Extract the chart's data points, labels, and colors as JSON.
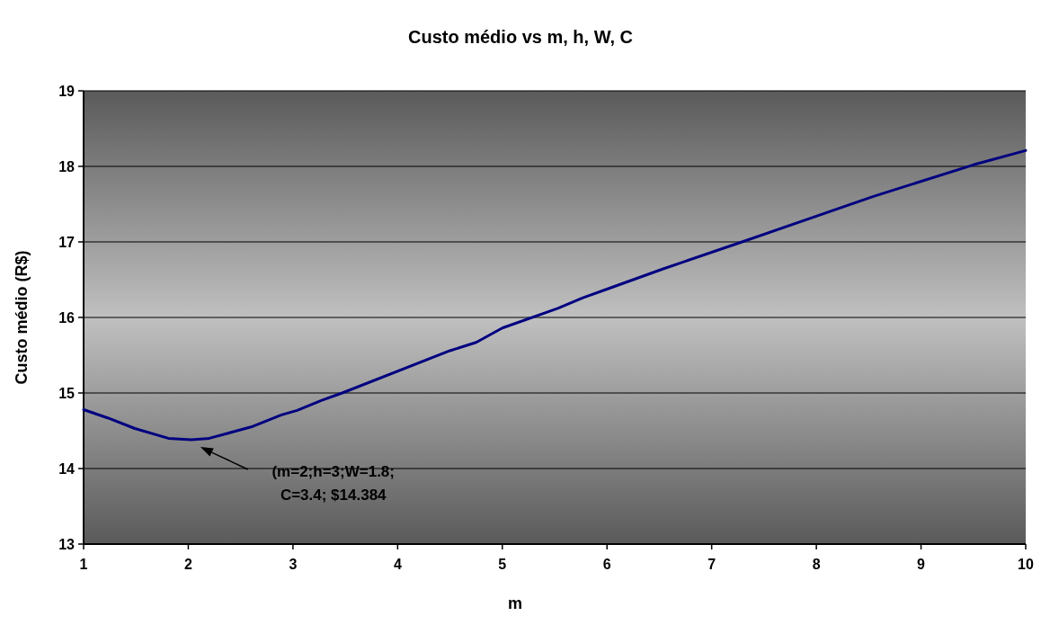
{
  "chart_data": {
    "type": "line",
    "title": "Custo médio vs m, h, W, C",
    "xlabel": "m",
    "ylabel": "Custo médio (R$)",
    "x": [
      1,
      1.23,
      1.49,
      1.81,
      2.03,
      2.2,
      2.6,
      2.89,
      3.04,
      3.27,
      3.47,
      4.5,
      4.75,
      5.0,
      5.53,
      5.77,
      6.03,
      6.53,
      7.29,
      8.54,
      9.5,
      10
    ],
    "series": [
      {
        "color": "#000080",
        "values": [
          14.78,
          14.67,
          14.53,
          14.4,
          14.38,
          14.4,
          14.55,
          14.71,
          14.77,
          14.9,
          15.0,
          15.56,
          15.67,
          15.86,
          16.12,
          16.26,
          16.39,
          16.64,
          17.0,
          17.6,
          18.02,
          18.21
        ]
      }
    ],
    "xlim": [
      1,
      10
    ],
    "xticks": [
      1,
      2,
      3,
      4,
      5,
      6,
      7,
      8,
      9,
      10
    ],
    "ylim": [
      13,
      19
    ],
    "yticks": [
      13,
      14,
      15,
      16,
      17,
      18,
      19
    ],
    "grid": "y",
    "marker": "none",
    "line_style": "solid",
    "annotations": [
      "(m=2;h=3;W=1.8;\nC=3.4; $14.384"
    ]
  }
}
